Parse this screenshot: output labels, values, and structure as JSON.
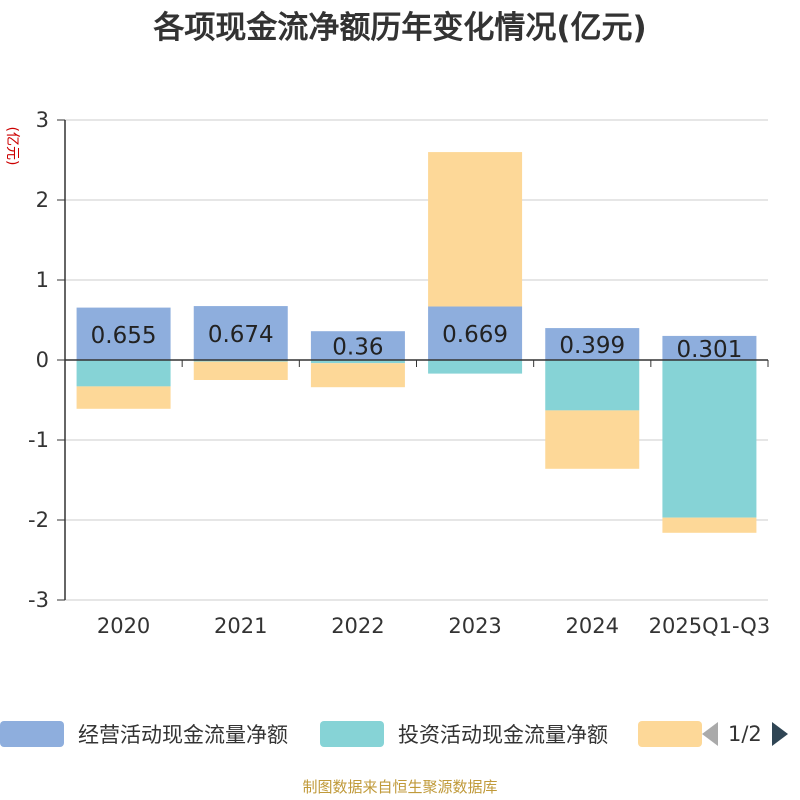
{
  "page": {
    "title": "各项现金流净额历年变化情况(亿元)",
    "source": "制图数据来自恒生聚源数据库"
  },
  "chart_data": {
    "type": "bar",
    "stacked": true,
    "title": "各项现金流净额历年变化情况(亿元)",
    "ylabel": "(亿元)",
    "ylim": [
      -3,
      3
    ],
    "yticks": [
      3,
      2,
      1,
      0,
      -1,
      -2,
      -3
    ],
    "categories": [
      "2020",
      "2021",
      "2022",
      "2023",
      "2024",
      "2025Q1-Q3"
    ],
    "series": [
      {
        "name": "经营活动现金流量净额",
        "color": "#8eaedd",
        "values": [
          0.655,
          0.674,
          0.36,
          0.669,
          0.399,
          0.301
        ],
        "labels": [
          "0.655",
          "0.674",
          "0.36",
          "0.669",
          "0.399",
          "0.301"
        ]
      },
      {
        "name": "投资活动现金流量净额",
        "color": "#86d3d6",
        "values": [
          -0.33,
          -0.02,
          -0.04,
          -0.17,
          -0.63,
          -1.97
        ]
      },
      {
        "name": "",
        "color": "#fdd898",
        "values": [
          -0.28,
          -0.23,
          -0.3,
          1.93,
          -0.73,
          -0.19
        ]
      }
    ]
  },
  "legend": {
    "items": [
      {
        "label": "经营活动现金流量净额",
        "color": "#8eaedd"
      },
      {
        "label": "投资活动现金流量净额",
        "color": "#86d3d6"
      },
      {
        "label": "",
        "color": "#fdd898"
      }
    ],
    "pager": {
      "text": "1/2",
      "prev_icon": "triangle-left-icon",
      "next_icon": "triangle-right-icon"
    }
  }
}
